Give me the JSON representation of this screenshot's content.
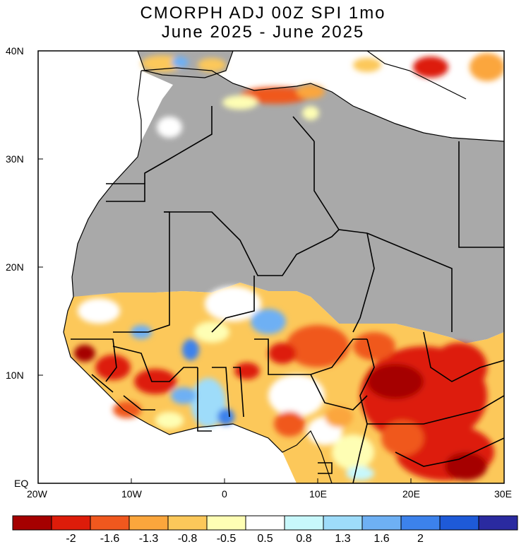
{
  "title": {
    "line1": "CMORPH ADJ 00Z SPI 1mo",
    "line2": "June 2025 - June 2025"
  },
  "map": {
    "lon_range": [
      -20,
      30
    ],
    "lat_range": [
      0,
      40
    ],
    "lat_ticks": [
      "40N",
      "30N",
      "20N",
      "10N",
      "EQ"
    ],
    "lon_ticks": [
      "20W",
      "10W",
      "0",
      "10E",
      "20E",
      "30E"
    ],
    "no_data_color": "#a9a9a9",
    "land_note": "grey = dry-season mask"
  },
  "colorbar": {
    "colors": [
      "#a50000",
      "#dd1c0a",
      "#f0581e",
      "#fba63c",
      "#fcc85a",
      "#fefeb4",
      "#ffffff",
      "#c8f8fc",
      "#9edcfa",
      "#6eb0f4",
      "#3c82ec",
      "#1e5ad8",
      "#2a2aa0"
    ],
    "labels": [
      "-2",
      "-1.6",
      "-1.3",
      "-0.8",
      "-0.5",
      "0.5",
      "0.8",
      "1.3",
      "1.6",
      "2"
    ]
  }
}
